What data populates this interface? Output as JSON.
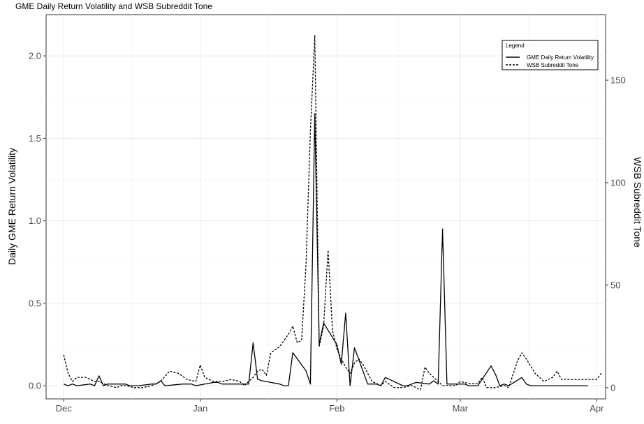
{
  "chart_data": {
    "type": "line",
    "title": "GME Daily Return Volatility and WSB Subreddit Tone",
    "ylabel": "Daily GME Return Volatility",
    "y2label": "WSB Subreddit Tone",
    "x_ticks": [
      "Dec",
      "Jan",
      "Feb",
      "Mar",
      "Apr"
    ],
    "x_tick_dates": [
      "2020-12-01",
      "2021-01-01",
      "2021-02-01",
      "2021-03-01",
      "2021-04-01"
    ],
    "xlim": [
      "2020-11-27",
      "2021-04-03"
    ],
    "ylim": [
      -0.08,
      2.25
    ],
    "y_ticks": [
      "0.0",
      "0.5",
      "1.0",
      "1.5",
      "2.0"
    ],
    "y2lim": [
      -5.5,
      182
    ],
    "y2_ticks": [
      "0",
      "50",
      "100",
      "150"
    ],
    "grid": true,
    "legend": {
      "title": "Legend",
      "position": "top-right",
      "entries": [
        "GME Daily Return Volatility",
        "WSB Subreddit Tone"
      ]
    },
    "series": [
      {
        "name": "GME Daily Return Volatility",
        "axis": "left",
        "style": "solid",
        "points": [
          [
            "2020-12-01",
            0.01
          ],
          [
            "2020-12-02",
            0.0
          ],
          [
            "2020-12-03",
            0.01
          ],
          [
            "2020-12-04",
            0.0
          ],
          [
            "2020-12-07",
            0.01
          ],
          [
            "2020-12-08",
            0.0
          ],
          [
            "2020-12-09",
            0.06
          ],
          [
            "2020-12-10",
            0.0
          ],
          [
            "2020-12-11",
            0.01
          ],
          [
            "2020-12-14",
            0.01
          ],
          [
            "2020-12-15",
            0.01
          ],
          [
            "2020-12-16",
            0.0
          ],
          [
            "2020-12-17",
            0.0
          ],
          [
            "2020-12-18",
            0.0
          ],
          [
            "2020-12-21",
            0.01
          ],
          [
            "2020-12-22",
            0.01
          ],
          [
            "2020-12-23",
            0.03
          ],
          [
            "2020-12-24",
            0.0
          ],
          [
            "2020-12-28",
            0.01
          ],
          [
            "2020-12-29",
            0.01
          ],
          [
            "2020-12-30",
            0.01
          ],
          [
            "2020-12-31",
            0.0
          ],
          [
            "2021-01-04",
            0.02
          ],
          [
            "2021-01-05",
            0.02
          ],
          [
            "2021-01-06",
            0.01
          ],
          [
            "2021-01-07",
            0.01
          ],
          [
            "2021-01-08",
            0.01
          ],
          [
            "2021-01-11",
            0.01
          ],
          [
            "2021-01-12",
            0.01
          ],
          [
            "2021-01-13",
            0.26
          ],
          [
            "2021-01-14",
            0.04
          ],
          [
            "2021-01-15",
            0.03
          ],
          [
            "2021-01-19",
            0.01
          ],
          [
            "2021-01-20",
            0.0
          ],
          [
            "2021-01-21",
            0.0
          ],
          [
            "2021-01-22",
            0.2
          ],
          [
            "2021-01-25",
            0.09
          ],
          [
            "2021-01-26",
            0.01
          ],
          [
            "2021-01-27",
            1.65
          ],
          [
            "2021-01-28",
            0.25
          ],
          [
            "2021-01-29",
            0.38
          ],
          [
            "2021-02-01",
            0.25
          ],
          [
            "2021-02-02",
            0.13
          ],
          [
            "2021-02-03",
            0.44
          ],
          [
            "2021-02-04",
            0.0
          ],
          [
            "2021-02-05",
            0.23
          ],
          [
            "2021-02-08",
            0.01
          ],
          [
            "2021-02-09",
            0.01
          ],
          [
            "2021-02-10",
            0.01
          ],
          [
            "2021-02-11",
            0.0
          ],
          [
            "2021-02-12",
            0.05
          ],
          [
            "2021-02-16",
            0.0
          ],
          [
            "2021-02-17",
            0.0
          ],
          [
            "2021-02-18",
            0.01
          ],
          [
            "2021-02-19",
            0.02
          ],
          [
            "2021-02-22",
            0.01
          ],
          [
            "2021-02-23",
            0.03
          ],
          [
            "2021-02-24",
            0.01
          ],
          [
            "2021-02-25",
            0.95
          ],
          [
            "2021-02-26",
            0.01
          ],
          [
            "2021-03-01",
            0.01
          ],
          [
            "2021-03-02",
            0.01
          ],
          [
            "2021-03-03",
            0.0
          ],
          [
            "2021-03-04",
            0.0
          ],
          [
            "2021-03-05",
            0.0
          ],
          [
            "2021-03-08",
            0.12
          ],
          [
            "2021-03-09",
            0.07
          ],
          [
            "2021-03-10",
            0.0
          ],
          [
            "2021-03-11",
            0.01
          ],
          [
            "2021-03-12",
            0.0
          ],
          [
            "2021-03-15",
            0.05
          ],
          [
            "2021-03-16",
            0.01
          ],
          [
            "2021-03-17",
            0.0
          ],
          [
            "2021-03-18",
            0.0
          ],
          [
            "2021-03-19",
            0.0
          ],
          [
            "2021-03-22",
            0.0
          ],
          [
            "2021-03-23",
            0.0
          ],
          [
            "2021-03-24",
            0.0
          ],
          [
            "2021-03-25",
            0.0
          ],
          [
            "2021-03-26",
            0.0
          ],
          [
            "2021-03-29",
            0.0
          ],
          [
            "2021-03-30",
            0.0
          ]
        ]
      },
      {
        "name": "WSB Subreddit Tone",
        "axis": "right",
        "style": "dashed",
        "points": [
          [
            "2020-12-01",
            16
          ],
          [
            "2020-12-02",
            7
          ],
          [
            "2020-12-03",
            3
          ],
          [
            "2020-12-04",
            5
          ],
          [
            "2020-12-06",
            5
          ],
          [
            "2020-12-08",
            3
          ],
          [
            "2020-12-09",
            3
          ],
          [
            "2020-12-10",
            2
          ],
          [
            "2020-12-11",
            1
          ],
          [
            "2020-12-13",
            0
          ],
          [
            "2020-12-14",
            1
          ],
          [
            "2020-12-15",
            1
          ],
          [
            "2020-12-17",
            0
          ],
          [
            "2020-12-19",
            0
          ],
          [
            "2020-12-21",
            1
          ],
          [
            "2020-12-23",
            3
          ],
          [
            "2020-12-25",
            8
          ],
          [
            "2020-12-27",
            7
          ],
          [
            "2020-12-29",
            4
          ],
          [
            "2020-12-31",
            3
          ],
          [
            "2021-01-01",
            11
          ],
          [
            "2021-01-02",
            5
          ],
          [
            "2021-01-04",
            3
          ],
          [
            "2021-01-06",
            3
          ],
          [
            "2021-01-08",
            4
          ],
          [
            "2021-01-10",
            3
          ],
          [
            "2021-01-11",
            1
          ],
          [
            "2021-01-13",
            5
          ],
          [
            "2021-01-14",
            8
          ],
          [
            "2021-01-15",
            9
          ],
          [
            "2021-01-16",
            6
          ],
          [
            "2021-01-17",
            17
          ],
          [
            "2021-01-19",
            20
          ],
          [
            "2021-01-21",
            26
          ],
          [
            "2021-01-22",
            30
          ],
          [
            "2021-01-23",
            22
          ],
          [
            "2021-01-24",
            23
          ],
          [
            "2021-01-25",
            60
          ],
          [
            "2021-01-26",
            125
          ],
          [
            "2021-01-27",
            172
          ],
          [
            "2021-01-28",
            20
          ],
          [
            "2021-01-29",
            30
          ],
          [
            "2021-01-30",
            67
          ],
          [
            "2021-01-31",
            28
          ],
          [
            "2021-02-01",
            19
          ],
          [
            "2021-02-02",
            14
          ],
          [
            "2021-02-03",
            10
          ],
          [
            "2021-02-04",
            7
          ],
          [
            "2021-02-05",
            12
          ],
          [
            "2021-02-06",
            14
          ],
          [
            "2021-02-07",
            11
          ],
          [
            "2021-02-08",
            7
          ],
          [
            "2021-02-09",
            3
          ],
          [
            "2021-02-10",
            2
          ],
          [
            "2021-02-11",
            1
          ],
          [
            "2021-02-12",
            3
          ],
          [
            "2021-02-14",
            0
          ],
          [
            "2021-02-16",
            0
          ],
          [
            "2021-02-18",
            1
          ],
          [
            "2021-02-20",
            -1
          ],
          [
            "2021-02-21",
            10
          ],
          [
            "2021-02-22",
            7
          ],
          [
            "2021-02-24",
            3
          ],
          [
            "2021-02-25",
            1
          ],
          [
            "2021-02-27",
            1
          ],
          [
            "2021-02-28",
            1
          ],
          [
            "2021-03-01",
            3
          ],
          [
            "2021-03-03",
            2
          ],
          [
            "2021-03-05",
            2
          ],
          [
            "2021-03-06",
            5
          ],
          [
            "2021-03-07",
            0
          ],
          [
            "2021-03-09",
            0
          ],
          [
            "2021-03-11",
            1
          ],
          [
            "2021-03-12",
            0
          ],
          [
            "2021-03-14",
            13
          ],
          [
            "2021-03-15",
            17
          ],
          [
            "2021-03-16",
            14
          ],
          [
            "2021-03-18",
            7
          ],
          [
            "2021-03-20",
            3
          ],
          [
            "2021-03-22",
            5
          ],
          [
            "2021-03-23",
            8
          ],
          [
            "2021-03-24",
            4
          ],
          [
            "2021-03-26",
            4
          ],
          [
            "2021-03-28",
            4
          ],
          [
            "2021-03-30",
            4
          ],
          [
            "2021-04-01",
            4
          ],
          [
            "2021-04-02",
            7
          ]
        ]
      }
    ]
  }
}
